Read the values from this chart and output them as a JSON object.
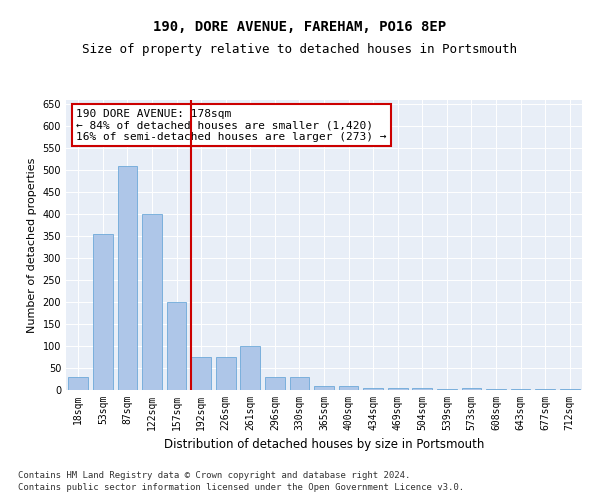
{
  "title1": "190, DORE AVENUE, FAREHAM, PO16 8EP",
  "title2": "Size of property relative to detached houses in Portsmouth",
  "xlabel": "Distribution of detached houses by size in Portsmouth",
  "ylabel": "Number of detached properties",
  "categories": [
    "18sqm",
    "53sqm",
    "87sqm",
    "122sqm",
    "157sqm",
    "192sqm",
    "226sqm",
    "261sqm",
    "296sqm",
    "330sqm",
    "365sqm",
    "400sqm",
    "434sqm",
    "469sqm",
    "504sqm",
    "539sqm",
    "573sqm",
    "608sqm",
    "643sqm",
    "677sqm",
    "712sqm"
  ],
  "values": [
    30,
    355,
    510,
    400,
    200,
    75,
    75,
    100,
    30,
    30,
    10,
    10,
    5,
    5,
    5,
    2,
    5,
    2,
    2,
    2,
    2
  ],
  "bar_color": "#aec6e8",
  "bar_edgecolor": "#5a9fd4",
  "vline_color": "#cc0000",
  "annotation_text": "190 DORE AVENUE: 178sqm\n← 84% of detached houses are smaller (1,420)\n16% of semi-detached houses are larger (273) →",
  "annotation_box_color": "#cc0000",
  "ylim": [
    0,
    660
  ],
  "yticks": [
    0,
    50,
    100,
    150,
    200,
    250,
    300,
    350,
    400,
    450,
    500,
    550,
    600,
    650
  ],
  "background_color": "#e8eef7",
  "fig_background": "#ffffff",
  "footer1": "Contains HM Land Registry data © Crown copyright and database right 2024.",
  "footer2": "Contains public sector information licensed under the Open Government Licence v3.0.",
  "title1_fontsize": 10,
  "title2_fontsize": 9,
  "xlabel_fontsize": 8.5,
  "ylabel_fontsize": 8,
  "tick_fontsize": 7,
  "annotation_fontsize": 8,
  "footer_fontsize": 6.5
}
